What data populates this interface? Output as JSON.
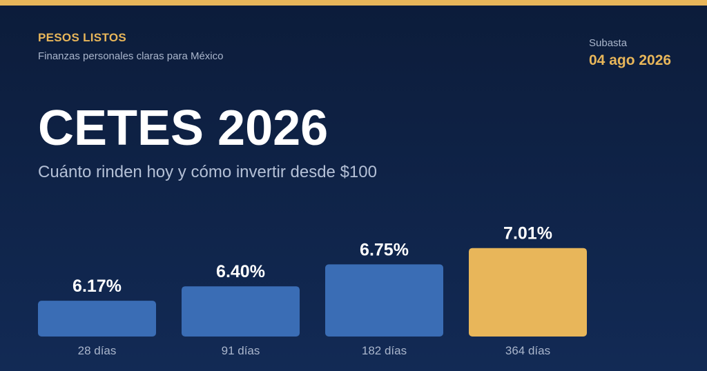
{
  "header": {
    "brand": "PESOS LISTOS",
    "tagline": "Finanzas personales claras para México",
    "auction_label": "Subasta",
    "auction_date": "04 ago 2026"
  },
  "hero": {
    "title": "CETES 2026",
    "subtitle": "Cuánto rinden hoy y cómo invertir desde $100"
  },
  "colors": {
    "accent": "#e8b65a",
    "bar": "#3a6db5",
    "highlight_bar": "#e8b65a",
    "background": "#0f2246"
  },
  "chart_data": {
    "type": "bar",
    "categories": [
      "28 días",
      "91 días",
      "182 días",
      "364 días"
    ],
    "values": [
      6.17,
      6.4,
      6.75,
      7.01
    ],
    "value_labels": [
      "6.17%",
      "6.40%",
      "6.75%",
      "7.01%"
    ],
    "highlight_index": 3,
    "title": "",
    "xlabel": "",
    "ylabel": "",
    "grid": false
  }
}
